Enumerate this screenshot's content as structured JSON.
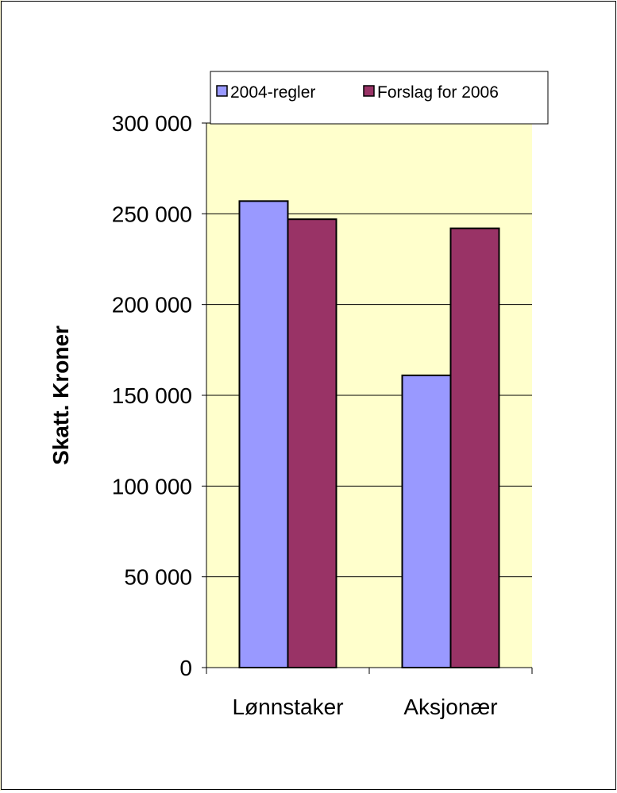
{
  "chart_data": {
    "type": "bar",
    "title": "",
    "xlabel": "",
    "ylabel": "Skatt. Kroner",
    "categories": [
      "Lønnstaker",
      "Aksjonær"
    ],
    "series": [
      {
        "name": "2004-regler",
        "values": [
          257000,
          161000
        ],
        "color": "#9999ff"
      },
      {
        "name": "Forslag for 2006",
        "values": [
          247000,
          242000
        ],
        "color": "#993366"
      }
    ],
    "ylim": [
      0,
      300000
    ],
    "yticks": [
      0,
      50000,
      100000,
      150000,
      200000,
      250000,
      300000
    ],
    "ytick_labels": [
      "0",
      "50 000",
      "100 000",
      "150 000",
      "200 000",
      "250 000",
      "300 000"
    ],
    "grid": true,
    "legend": "top",
    "plot_background": "#ffffcc"
  }
}
